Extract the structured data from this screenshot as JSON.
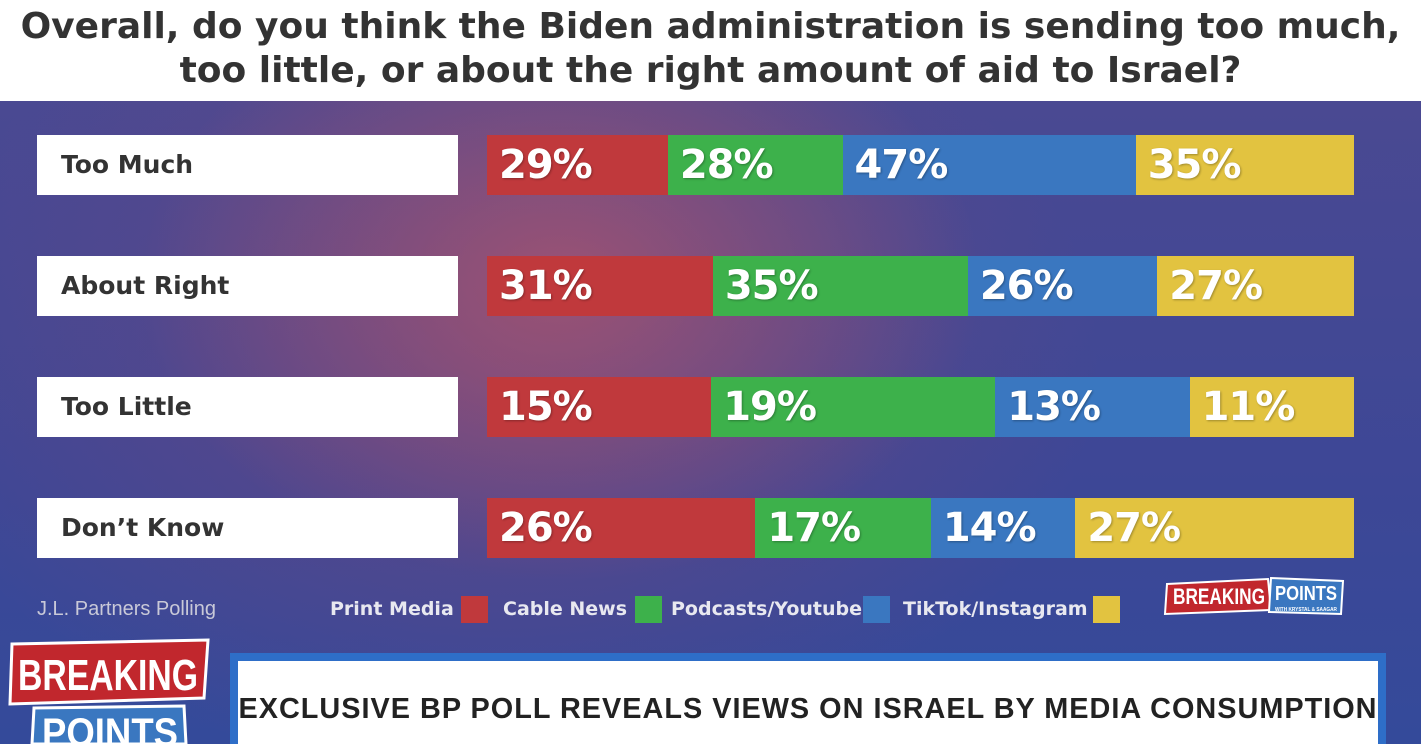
{
  "title": "Overall, do you think the Biden administration is sending too much, too little, or about the right amount of aid to Israel?",
  "colors": {
    "Print Media": "#c0393c",
    "Cable News": "#3db14b",
    "Podcasts/Youtube": "#3a77c0",
    "TikTok/Instagram": "#e2c340"
  },
  "chart_data": {
    "type": "bar",
    "stacked": true,
    "orientation": "horizontal",
    "title": "Overall, do you think the Biden administration is sending too much, too little, or about the right amount of aid to Israel?",
    "categories": [
      "Too Much",
      "About Right",
      "Too Little",
      "Don’t Know"
    ],
    "series": [
      {
        "name": "Print Media",
        "values": [
          29,
          31,
          15,
          26
        ],
        "labels": [
          "29%",
          "31%",
          "15%",
          "26%"
        ]
      },
      {
        "name": "Cable News",
        "values": [
          28,
          35,
          19,
          17
        ],
        "labels": [
          "28%",
          "35%",
          "19%",
          "17%"
        ]
      },
      {
        "name": "Podcasts/Youtube",
        "values": [
          47,
          26,
          13,
          14
        ],
        "labels": [
          "47%",
          "26%",
          "13%",
          "14%"
        ]
      },
      {
        "name": "TikTok/Instagram",
        "values": [
          35,
          27,
          11,
          27
        ],
        "labels": [
          "35%",
          "27%",
          "11%",
          "27%"
        ]
      }
    ],
    "legend": [
      "Print Media",
      "Cable News",
      "Podcasts/Youtube",
      "TikTok/Instagram"
    ],
    "source": "J.L. Partners Polling"
  },
  "branding": {
    "logo_line1": "BREAKING",
    "logo_line2": "POINTS",
    "logo_tagline": "WITH KRYSTAL & SAAGAR"
  },
  "banner": {
    "headline": "EXCLUSIVE BP POLL REVEALS VIEWS ON ISRAEL BY MEDIA CONSUMPTION"
  }
}
